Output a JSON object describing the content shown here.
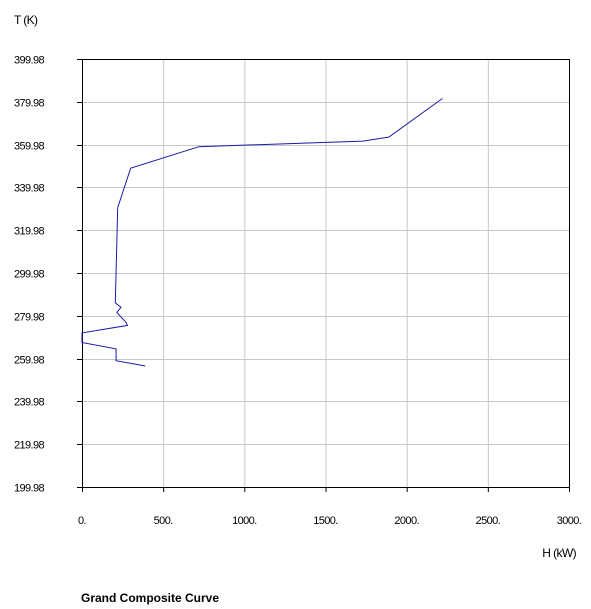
{
  "chart_data": {
    "type": "line",
    "title": "Grand Composite Curve",
    "xlabel": "H (kW)",
    "ylabel": "T (K)",
    "xlim": [
      0,
      3000
    ],
    "ylim": [
      199.98,
      399.98
    ],
    "x_ticks": [
      0,
      500,
      1000,
      1500,
      2000,
      2500,
      3000
    ],
    "x_tick_labels": [
      "0.",
      "500.",
      "1000.",
      "1500.",
      "2000.",
      "2500.",
      "3000."
    ],
    "y_ticks": [
      199.98,
      219.98,
      239.98,
      259.98,
      279.98,
      299.98,
      319.98,
      339.98,
      359.98,
      379.98,
      399.98
    ],
    "y_tick_labels": [
      "199.98",
      "219.98",
      "239.98",
      "259.98",
      "279.98",
      "299.98",
      "319.98",
      "339.98",
      "359.98",
      "379.98",
      "399.98"
    ],
    "grid": true,
    "line_color": "#1a1aa8",
    "series": [
      {
        "points": [
          [
            2220,
            381.5
          ],
          [
            1890,
            363.5
          ],
          [
            1730,
            361.6
          ],
          [
            720,
            359.0
          ],
          [
            300,
            349.0
          ],
          [
            220,
            330.5
          ],
          [
            205,
            286.0
          ],
          [
            240,
            284.0
          ],
          [
            215,
            281.5
          ],
          [
            270,
            277.0
          ],
          [
            280,
            275.5
          ],
          [
            0,
            272.0
          ],
          [
            0,
            267.5
          ],
          [
            210,
            264.5
          ],
          [
            210,
            259.0
          ],
          [
            390,
            256.5
          ]
        ]
      }
    ]
  }
}
